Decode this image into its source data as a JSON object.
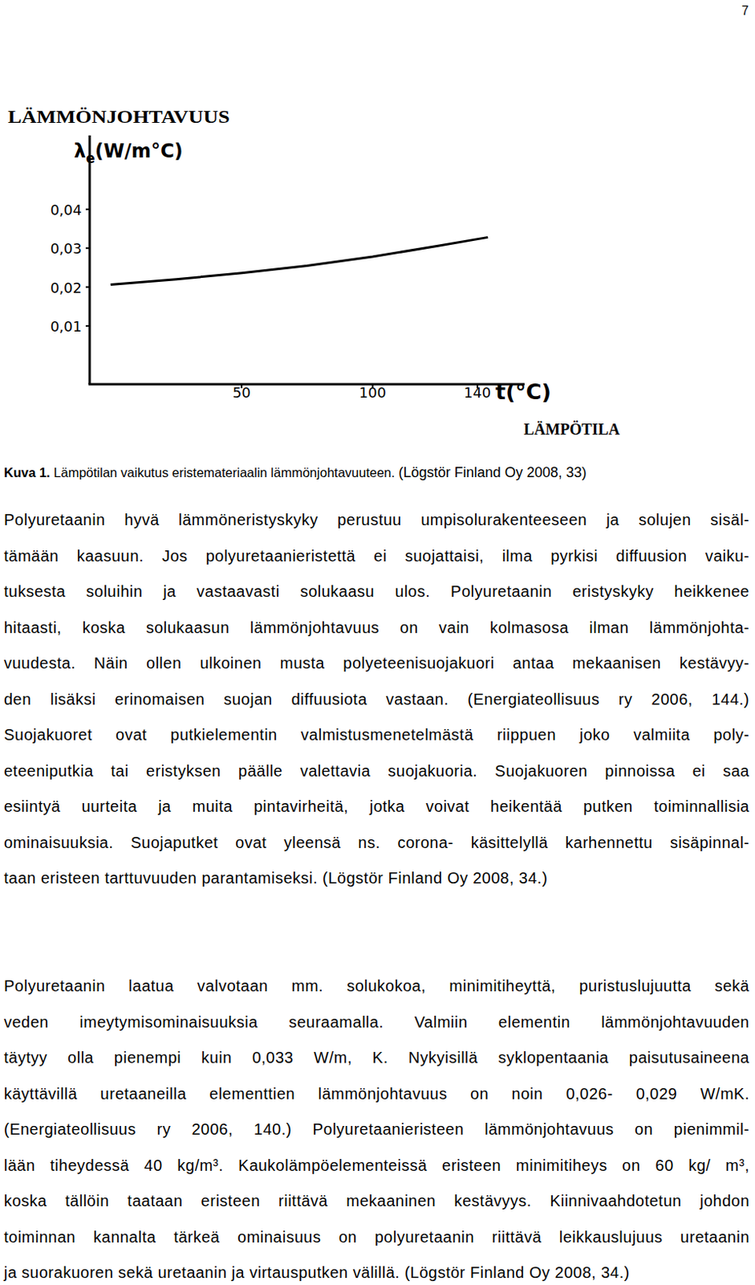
{
  "page_number": "7",
  "chart_data": {
    "type": "line",
    "title": "LÄMMÖNJOHTAVUUS",
    "y_label": "λe(W/m°C)",
    "x_label": "t(°C)",
    "x_axis_title": "LÄMPÖTILA",
    "x": [
      0,
      25,
      50,
      75,
      100,
      125,
      144
    ],
    "values": [
      0.0206,
      0.022,
      0.0236,
      0.0255,
      0.0278,
      0.0306,
      0.0328
    ],
    "color": "#000000",
    "xlim": [
      -8,
      158
    ],
    "xticks": [
      50,
      100,
      140
    ],
    "ylim": [
      -0.005,
      0.059
    ],
    "yticks": [
      {
        "value": 0.01,
        "label": "0,01"
      },
      {
        "value": 0.02,
        "label": "0,02"
      },
      {
        "value": 0.03,
        "label": "0,03"
      },
      {
        "value": 0.04,
        "label": "0,04"
      }
    ],
    "grid": false
  },
  "caption": {
    "label": "Kuva 1.",
    "text": "Lämpötilan vaikutus eristemateriaalin lämmönjohtavuuteen.",
    "source": "(Lögstör Finland Oy 2008, 33)"
  },
  "paragraphs": [
    {
      "lines": [
        "Polyuretaanin hyvä lämmöneristyskyky perustuu umpisolurakenteeseen ja solujen sisäl-",
        "tämään kaasuun. Jos polyuretaanieristettä ei suojattaisi, ilma pyrkisi diffuusion vaiku-",
        "tuksesta soluihin ja vastaavasti solukaasu ulos. Polyuretaanin eristyskyky heikkenee",
        "hitaasti, koska solukaasun lämmönjohtavuus on vain kolmasosa ilman lämmönjohta-",
        "vuudesta. Näin ollen ulkoinen musta polyeteenisuojakuori antaa mekaanisen kestävyy-",
        "den lisäksi erinomaisen suojan diffuusiota vastaan. (Energiateollisuus ry 2006, 144.)",
        "Suojakuoret ovat putkielementin valmistusmenetelmästä riippuen joko valmiita poly-",
        "eteeniputkia tai eristyksen päälle valettavia suojakuoria. Suojakuoren pinnoissa ei saa",
        "esiintyä uurteita ja muita pintavirheitä, jotka voivat heikentää putken toiminnallisia",
        "ominaisuuksia. Suojaputket ovat yleensä ns. corona- käsittelyllä karhennettu sisäpinnal-",
        "taan eristeen tarttuvuuden parantamiseksi. (Lögstör Finland Oy 2008, 34.)"
      ]
    },
    {
      "lines": [
        "Polyuretaanin laatua valvotaan mm. solukokoa, minimitiheyttä, puristuslujuutta sekä",
        "veden imeytymisominaisuuksia seuraamalla. Valmiin elementin lämmönjohtavuuden",
        "täytyy olla pienempi kuin 0,033 W/m, K. Nykyisillä syklopentaania paisutusaineena",
        "käyttävillä uretaaneilla elementtien lämmönjohtavuus on noin 0,026- 0,029 W/mK.",
        "(Energiateollisuus ry 2006, 140.) Polyuretaanieristeen lämmönjohtavuus on pienimmil-",
        "lään tiheydessä 40 kg/m³. Kaukolämpöelementeissä eristeen minimitiheys on 60 kg/ m³,",
        "koska tällöin taataan eristeen riittävä mekaaninen kestävyys. Kiinnivaahdotetun johdon",
        "toiminnan kannalta tärkeä ominaisuus on polyuretaanin riittävä leikkauslujuus uretaanin",
        "ja suorakuoren sekä uretaanin ja virtausputken välillä. (Lögstör Finland Oy 2008, 34.)"
      ]
    }
  ]
}
